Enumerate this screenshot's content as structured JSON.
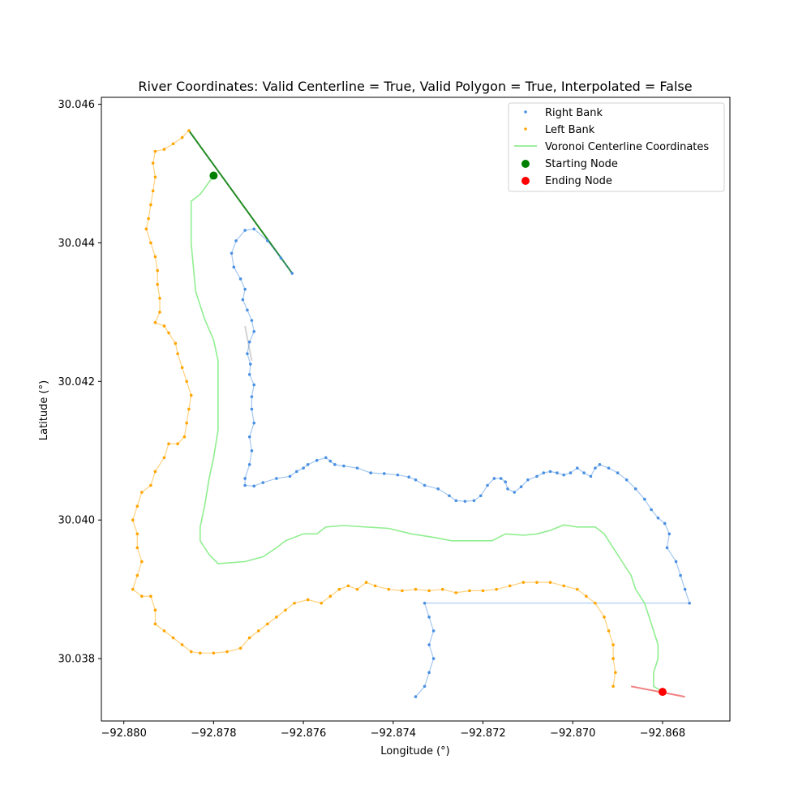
{
  "chart_data": {
    "type": "scatter",
    "title": "River Coordinates: Valid Centerline = True, Valid Polygon = True, Interpolated = False",
    "xlabel": "Longitude (°)",
    "ylabel": "Latitude (°)",
    "xlim": [
      -92.8805,
      -92.8665
    ],
    "ylim": [
      30.0371,
      30.0461
    ],
    "xticks": [
      -92.88,
      -92.878,
      -92.876,
      -92.874,
      -92.872,
      -92.87,
      -92.868
    ],
    "xtick_labels": [
      "−92.880",
      "−92.878",
      "−92.876",
      "−92.874",
      "−92.872",
      "−92.870",
      "−92.868"
    ],
    "yticks": [
      30.038,
      30.04,
      30.042,
      30.044,
      30.046
    ],
    "ytick_labels": [
      "30.038",
      "30.040",
      "30.042",
      "30.044",
      "30.046"
    ],
    "grid": false,
    "legend_position": "top-right",
    "colors": {
      "right_bank": "#4a90e2",
      "left_bank": "#ffa500",
      "centerline": "#90ee90",
      "start_node": "#008000",
      "end_node": "#ff0000",
      "start_connector": "#228b22",
      "end_connector": "#f08080",
      "gap_connector": "#d3d3d3"
    },
    "legend": [
      {
        "label": "Right Bank",
        "kind": "point",
        "color": "#4a90e2"
      },
      {
        "label": "Left Bank",
        "kind": "point",
        "color": "#ffa500"
      },
      {
        "label": "Voronoi Centerline Coordinates",
        "kind": "line",
        "color": "#90ee90"
      },
      {
        "label": "Starting Node",
        "kind": "node",
        "color": "#008000"
      },
      {
        "label": "Ending Node",
        "kind": "node",
        "color": "#ff0000"
      }
    ],
    "series": [
      {
        "name": "Right Bank",
        "points": [
          [
            -92.87625,
            30.04356
          ],
          [
            -92.8765,
            30.04378
          ],
          [
            -92.8768,
            30.04403
          ],
          [
            -92.8771,
            30.0442
          ],
          [
            -92.8773,
            30.04418
          ],
          [
            -92.8775,
            30.04403
          ],
          [
            -92.8776,
            30.04385
          ],
          [
            -92.87755,
            30.04365
          ],
          [
            -92.8774,
            30.04348
          ],
          [
            -92.8773,
            30.04333
          ],
          [
            -92.87735,
            30.04318
          ],
          [
            -92.87725,
            30.04303
          ],
          [
            -92.87715,
            30.04288
          ],
          [
            -92.8771,
            30.04272
          ],
          [
            -92.8772,
            30.04257
          ],
          [
            -92.87725,
            30.0424
          ],
          [
            -92.87718,
            30.04225
          ],
          [
            -92.8772,
            30.0421
          ],
          [
            -92.8771,
            30.04195
          ],
          [
            -92.87715,
            30.04178
          ],
          [
            -92.87715,
            30.0416
          ],
          [
            -92.8771,
            30.0414
          ],
          [
            -92.8772,
            30.0412
          ],
          [
            -92.87715,
            30.041
          ],
          [
            -92.8772,
            30.0408
          ],
          [
            -92.8773,
            30.0406
          ],
          [
            -92.8773,
            30.0405
          ],
          [
            -92.8771,
            30.04049
          ],
          [
            -92.8769,
            30.04054
          ],
          [
            -92.8766,
            30.0406
          ],
          [
            -92.8763,
            30.04063
          ],
          [
            -92.87615,
            30.0407
          ],
          [
            -92.876,
            30.04075
          ],
          [
            -92.8759,
            30.0408
          ],
          [
            -92.8757,
            30.04086
          ],
          [
            -92.8755,
            30.0409
          ],
          [
            -92.8754,
            30.04085
          ],
          [
            -92.8753,
            30.0408
          ],
          [
            -92.8751,
            30.04078
          ],
          [
            -92.8748,
            30.04075
          ],
          [
            -92.8745,
            30.04068
          ],
          [
            -92.8742,
            30.04067
          ],
          [
            -92.8739,
            30.04065
          ],
          [
            -92.87365,
            30.04062
          ],
          [
            -92.8735,
            30.04058
          ],
          [
            -92.8733,
            30.0405
          ],
          [
            -92.873,
            30.04045
          ],
          [
            -92.87275,
            30.04035
          ],
          [
            -92.8726,
            30.04028
          ],
          [
            -92.8724,
            30.04027
          ],
          [
            -92.8722,
            30.04028
          ],
          [
            -92.87205,
            30.04035
          ],
          [
            -92.8719,
            30.0405
          ],
          [
            -92.87175,
            30.0406
          ],
          [
            -92.8716,
            30.0406
          ],
          [
            -92.8715,
            30.04055
          ],
          [
            -92.87145,
            30.04045
          ],
          [
            -92.8713,
            30.0404
          ],
          [
            -92.87115,
            30.04048
          ],
          [
            -92.871,
            30.04058
          ],
          [
            -92.8708,
            30.04063
          ],
          [
            -92.87065,
            30.04068
          ],
          [
            -92.8705,
            30.0407
          ],
          [
            -92.87035,
            30.04068
          ],
          [
            -92.8702,
            30.04065
          ],
          [
            -92.87005,
            30.04068
          ],
          [
            -92.8699,
            30.04075
          ],
          [
            -92.86975,
            30.04068
          ],
          [
            -92.8696,
            30.04063
          ],
          [
            -92.8695,
            30.04075
          ],
          [
            -92.8694,
            30.0408
          ],
          [
            -92.8692,
            30.04075
          ],
          [
            -92.869,
            30.04068
          ],
          [
            -92.8688,
            30.04058
          ],
          [
            -92.8686,
            30.04045
          ],
          [
            -92.8684,
            30.0403
          ],
          [
            -92.86825,
            30.04015
          ],
          [
            -92.8681,
            30.04003
          ],
          [
            -92.86795,
            30.03995
          ],
          [
            -92.86785,
            30.0398
          ],
          [
            -92.8679,
            30.0396
          ],
          [
            -92.8677,
            30.0394
          ],
          [
            -92.8676,
            30.0392
          ],
          [
            -92.8675,
            30.039
          ],
          [
            -92.8674,
            30.0388
          ],
          [
            -92.8733,
            30.0388
          ],
          [
            -92.8732,
            30.0386
          ],
          [
            -92.8731,
            30.0384
          ],
          [
            -92.8732,
            30.0382
          ],
          [
            -92.8731,
            30.038
          ],
          [
            -92.8732,
            30.0378
          ],
          [
            -92.8733,
            30.0376
          ],
          [
            -92.8735,
            30.03745
          ]
        ]
      },
      {
        "name": "Left Bank",
        "points": [
          [
            -92.87855,
            30.04562
          ],
          [
            -92.8787,
            30.04552
          ],
          [
            -92.8789,
            30.04543
          ],
          [
            -92.8791,
            30.04535
          ],
          [
            -92.8793,
            30.04532
          ],
          [
            -92.87935,
            30.04515
          ],
          [
            -92.8793,
            30.04495
          ],
          [
            -92.87935,
            30.04475
          ],
          [
            -92.8794,
            30.04455
          ],
          [
            -92.87945,
            30.04435
          ],
          [
            -92.8795,
            30.0442
          ],
          [
            -92.8794,
            30.044
          ],
          [
            -92.8793,
            30.0438
          ],
          [
            -92.87925,
            30.0436
          ],
          [
            -92.87925,
            30.0434
          ],
          [
            -92.8792,
            30.0432
          ],
          [
            -92.8792,
            30.043
          ],
          [
            -92.8793,
            30.04285
          ],
          [
            -92.8791,
            30.0428
          ],
          [
            -92.879,
            30.0427
          ],
          [
            -92.87885,
            30.04255
          ],
          [
            -92.8788,
            30.0424
          ],
          [
            -92.8787,
            30.0422
          ],
          [
            -92.8786,
            30.042
          ],
          [
            -92.8785,
            30.0418
          ],
          [
            -92.87855,
            30.0416
          ],
          [
            -92.8786,
            30.0414
          ],
          [
            -92.87865,
            30.0412
          ],
          [
            -92.8788,
            30.0411
          ],
          [
            -92.879,
            30.0411
          ],
          [
            -92.8791,
            30.0409
          ],
          [
            -92.8793,
            30.0407
          ],
          [
            -92.8794,
            30.0405
          ],
          [
            -92.8796,
            30.0404
          ],
          [
            -92.8797,
            30.0402
          ],
          [
            -92.8798,
            30.04
          ],
          [
            -92.8797,
            30.0398
          ],
          [
            -92.8797,
            30.0396
          ],
          [
            -92.8796,
            30.0394
          ],
          [
            -92.8797,
            30.0392
          ],
          [
            -92.8798,
            30.039
          ],
          [
            -92.8796,
            30.0389
          ],
          [
            -92.8794,
            30.0389
          ],
          [
            -92.8793,
            30.0387
          ],
          [
            -92.8793,
            30.0385
          ],
          [
            -92.8791,
            30.0384
          ],
          [
            -92.8789,
            30.0383
          ],
          [
            -92.8787,
            30.0382
          ],
          [
            -92.8785,
            30.0381
          ],
          [
            -92.8783,
            30.03808
          ],
          [
            -92.878,
            30.03808
          ],
          [
            -92.8777,
            30.0381
          ],
          [
            -92.8774,
            30.03815
          ],
          [
            -92.8772,
            30.0383
          ],
          [
            -92.877,
            30.0384
          ],
          [
            -92.8768,
            30.0385
          ],
          [
            -92.8766,
            30.0386
          ],
          [
            -92.8764,
            30.0387
          ],
          [
            -92.8762,
            30.0388
          ],
          [
            -92.8759,
            30.03885
          ],
          [
            -92.8756,
            30.0388
          ],
          [
            -92.8754,
            30.0389
          ],
          [
            -92.8752,
            30.039
          ],
          [
            -92.875,
            30.03905
          ],
          [
            -92.8748,
            30.039
          ],
          [
            -92.8746,
            30.0391
          ],
          [
            -92.8744,
            30.03905
          ],
          [
            -92.8741,
            30.039
          ],
          [
            -92.8738,
            30.03898
          ],
          [
            -92.8735,
            30.039
          ],
          [
            -92.8732,
            30.03898
          ],
          [
            -92.8729,
            30.039
          ],
          [
            -92.8726,
            30.03895
          ],
          [
            -92.8723,
            30.03898
          ],
          [
            -92.872,
            30.03898
          ],
          [
            -92.8717,
            30.039
          ],
          [
            -92.8714,
            30.03905
          ],
          [
            -92.8711,
            30.0391
          ],
          [
            -92.8708,
            30.0391
          ],
          [
            -92.8705,
            30.0391
          ],
          [
            -92.8702,
            30.03905
          ],
          [
            -92.8699,
            30.039
          ],
          [
            -92.8697,
            30.0389
          ],
          [
            -92.8695,
            30.0388
          ],
          [
            -92.8693,
            30.0386
          ],
          [
            -92.8692,
            30.0384
          ],
          [
            -92.8691,
            30.0382
          ],
          [
            -92.8691,
            30.038
          ],
          [
            -92.86905,
            30.0378
          ],
          [
            -92.8691,
            30.0376
          ]
        ]
      },
      {
        "name": "Voronoi Centerline Coordinates",
        "points": [
          [
            -92.878,
            30.04497
          ],
          [
            -92.8783,
            30.0447
          ],
          [
            -92.8785,
            30.0446
          ],
          [
            -92.8785,
            30.044
          ],
          [
            -92.8784,
            30.0433
          ],
          [
            -92.8782,
            30.0429
          ],
          [
            -92.878,
            30.0426
          ],
          [
            -92.8779,
            30.0423
          ],
          [
            -92.8779,
            30.0418
          ],
          [
            -92.8779,
            30.0413
          ],
          [
            -92.878,
            30.0409
          ],
          [
            -92.8781,
            30.0406
          ],
          [
            -92.8782,
            30.0402
          ],
          [
            -92.8783,
            30.0399
          ],
          [
            -92.8783,
            30.0397
          ],
          [
            -92.8781,
            30.0395
          ],
          [
            -92.8779,
            30.03937
          ],
          [
            -92.8773,
            30.0394
          ],
          [
            -92.8769,
            30.03947
          ],
          [
            -92.8766,
            30.0396
          ],
          [
            -92.8764,
            30.0397
          ],
          [
            -92.876,
            30.0398
          ],
          [
            -92.8757,
            30.0398
          ],
          [
            -92.8755,
            30.0399
          ],
          [
            -92.8751,
            30.03992
          ],
          [
            -92.8746,
            30.0399
          ],
          [
            -92.8741,
            30.03988
          ],
          [
            -92.8736,
            30.0398
          ],
          [
            -92.8731,
            30.03975
          ],
          [
            -92.8727,
            30.0397
          ],
          [
            -92.8722,
            30.0397
          ],
          [
            -92.8718,
            30.0397
          ],
          [
            -92.8715,
            30.0398
          ],
          [
            -92.8711,
            30.03978
          ],
          [
            -92.8708,
            30.0398
          ],
          [
            -92.8705,
            30.03985
          ],
          [
            -92.8702,
            30.03993
          ],
          [
            -92.8699,
            30.0399
          ],
          [
            -92.8695,
            30.0399
          ],
          [
            -92.8693,
            30.0398
          ],
          [
            -92.8691,
            30.0396
          ],
          [
            -92.8689,
            30.0394
          ],
          [
            -92.8687,
            30.0392
          ],
          [
            -92.8686,
            30.039
          ],
          [
            -92.8684,
            30.0388
          ],
          [
            -92.8683,
            30.0386
          ],
          [
            -92.8682,
            30.0384
          ],
          [
            -92.8681,
            30.0382
          ],
          [
            -92.8681,
            30.038
          ],
          [
            -92.8682,
            30.0378
          ],
          [
            -92.8682,
            30.0376
          ],
          [
            -92.868,
            30.03752
          ]
        ]
      }
    ],
    "start_node": [
      -92.878,
      30.04497
    ],
    "end_node": [
      -92.868,
      30.03752
    ],
    "start_connector": [
      [
        -92.87855,
        30.04562
      ],
      [
        -92.87625,
        30.04356
      ]
    ],
    "end_connector": [
      [
        -92.8687,
        30.0376
      ],
      [
        -92.8675,
        30.03745
      ]
    ],
    "gap_connector": [
      [
        -92.8773,
        30.0428
      ],
      [
        -92.87715,
        30.0423
      ]
    ]
  }
}
